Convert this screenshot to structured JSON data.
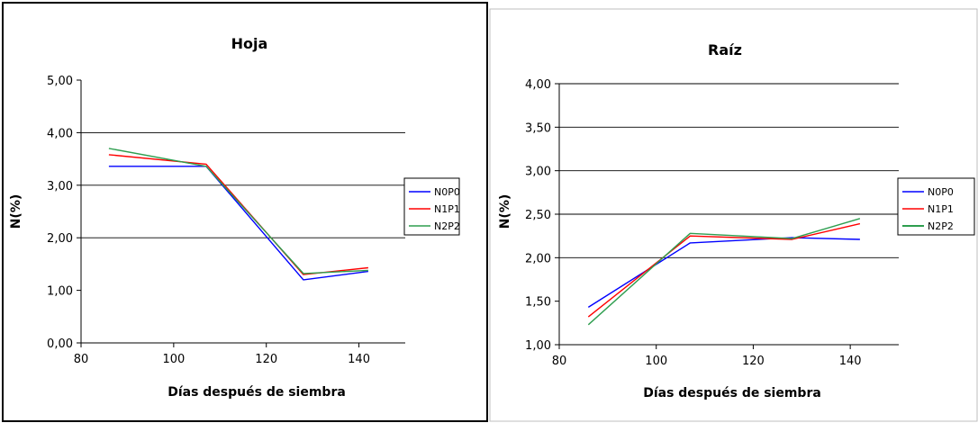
{
  "chart_data": [
    {
      "type": "line",
      "title": "Hoja",
      "xlabel": "Días después de siembra",
      "ylabel": "N(%)",
      "xlim": [
        80,
        150
      ],
      "ylim": [
        0,
        5
      ],
      "xticks": [
        80,
        100,
        120,
        140
      ],
      "yticks": [
        0,
        1,
        2,
        3,
        4,
        5
      ],
      "xtick_labels": [
        "80",
        "100",
        "120",
        "140"
      ],
      "ytick_labels": [
        "0,00",
        "1,00",
        "2,00",
        "3,00",
        "4,00",
        "5,00"
      ],
      "gridlines_y": [
        2,
        3,
        4
      ],
      "legend_position": "right",
      "series": [
        {
          "name": "N0P0",
          "color": "#0000ff",
          "x": [
            86,
            107,
            128,
            142
          ],
          "y": [
            3.36,
            3.36,
            1.2,
            1.36
          ]
        },
        {
          "name": "N1P1",
          "color": "#ff0000",
          "x": [
            86,
            107,
            128,
            142
          ],
          "y": [
            3.58,
            3.4,
            1.3,
            1.43
          ]
        },
        {
          "name": "N2P2",
          "color": "#2e9e4f",
          "x": [
            86,
            107,
            128,
            142
          ],
          "y": [
            3.7,
            3.36,
            1.32,
            1.38
          ]
        }
      ]
    },
    {
      "type": "line",
      "title": "Raíz",
      "xlabel": "Días después de siembra",
      "ylabel": "N(%)",
      "xlim": [
        80,
        150
      ],
      "ylim": [
        1,
        4
      ],
      "xticks": [
        80,
        100,
        120,
        140
      ],
      "yticks": [
        1,
        1.5,
        2,
        2.5,
        3,
        3.5,
        4
      ],
      "xtick_labels": [
        "80",
        "100",
        "120",
        "140"
      ],
      "ytick_labels": [
        "1,00",
        "1,50",
        "2,00",
        "2,50",
        "3,00",
        "3,50",
        "4,00"
      ],
      "gridlines_y": [
        2,
        2.5,
        3,
        3.5,
        4
      ],
      "legend_position": "right",
      "series": [
        {
          "name": "N0P0",
          "color": "#0000ff",
          "x": [
            86,
            107,
            128,
            142
          ],
          "y": [
            1.43,
            2.17,
            2.23,
            2.21
          ]
        },
        {
          "name": "N1P1",
          "color": "#ff0000",
          "x": [
            86,
            107,
            128,
            142
          ],
          "y": [
            1.32,
            2.25,
            2.21,
            2.39
          ]
        },
        {
          "name": "N2P2",
          "color": "#2e9e4f",
          "x": [
            86,
            107,
            128,
            142
          ],
          "y": [
            1.23,
            2.28,
            2.22,
            2.45
          ]
        }
      ]
    }
  ]
}
